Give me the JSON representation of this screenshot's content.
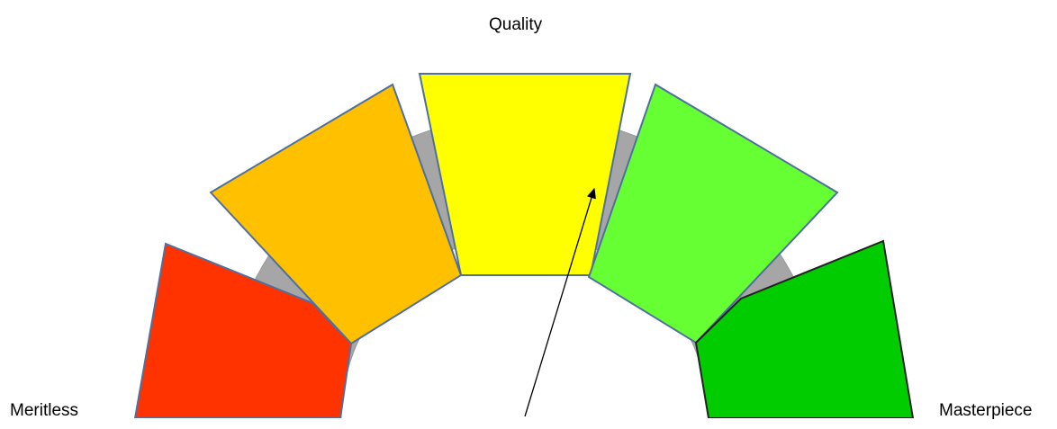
{
  "labels": {
    "top": "Quality",
    "left": "Meritless",
    "right": "Masterpiece"
  },
  "segments": [
    {
      "name": "red",
      "color": "#FF3300"
    },
    {
      "name": "orange",
      "color": "#FFC000"
    },
    {
      "name": "yellow",
      "color": "#FFFF00"
    },
    {
      "name": "light-green",
      "color": "#66FF33"
    },
    {
      "name": "dark-green",
      "color": "#00CC00"
    }
  ],
  "arc_color": "#A6A6A6",
  "outline_color": "#4F6FA0"
}
